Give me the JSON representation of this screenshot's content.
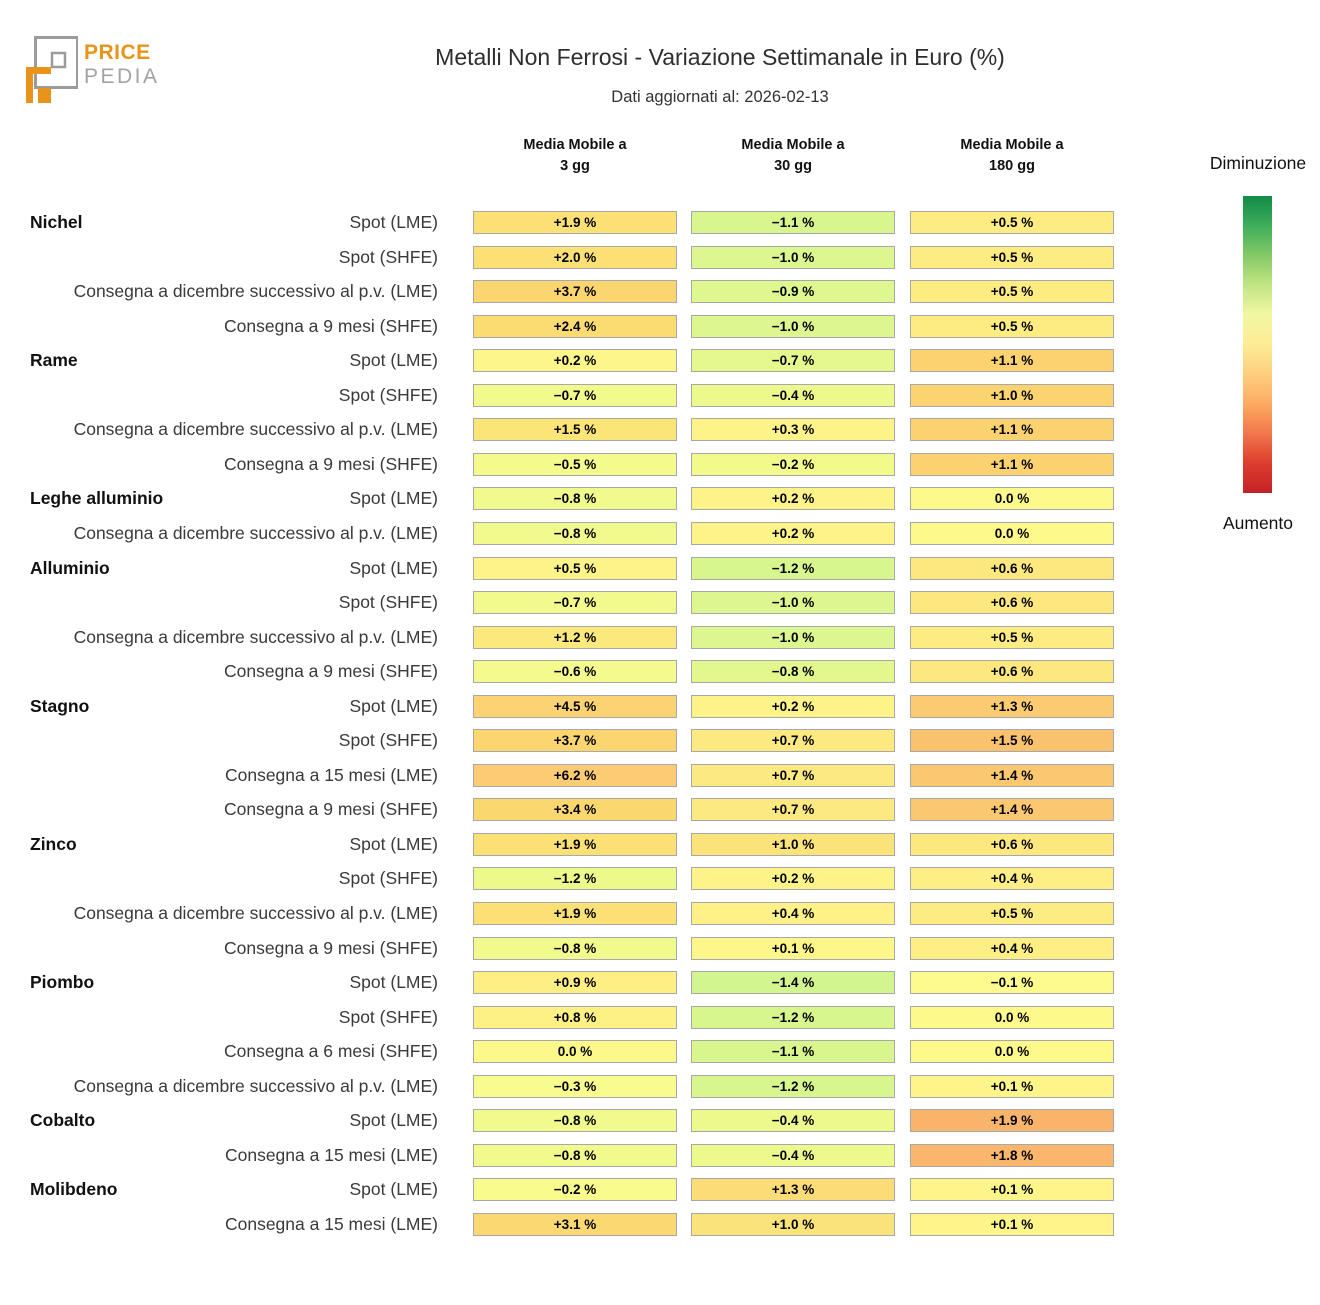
{
  "logo": {
    "brand_top": "PRICE",
    "brand_bottom": "PEDIA",
    "orange": "#e8941a",
    "gray": "#9c9c9c"
  },
  "header": {
    "title": "Metalli Non Ferrosi - Variazione Settimanale in Euro (%)",
    "subtitle": "Dati aggiornati al: 2026-02-13"
  },
  "legend": {
    "top_label": "Diminuzione",
    "bottom_label": "Aumento",
    "gradient": [
      "#128a46",
      "#3fae5c",
      "#84c966",
      "#c2e584",
      "#f2f7a2",
      "#fdec95",
      "#fdcf7d",
      "#fdab62",
      "#f2764c",
      "#dd3d2d",
      "#c32127"
    ]
  },
  "chart_data": {
    "type": "heatmap",
    "title": "Metalli Non Ferrosi - Variazione Settimanale in Euro (%)",
    "subtitle": "Dati aggiornati al: 2026-02-13",
    "updated": "2026-02-13",
    "value_unit": "%",
    "columns": [
      {
        "line1": "Media Mobile a",
        "line2": "3 gg"
      },
      {
        "line1": "Media Mobile a",
        "line2": "30 gg"
      },
      {
        "line1": "Media Mobile a",
        "line2": "180 gg"
      }
    ],
    "colorbar": {
      "top": "Diminuzione",
      "bottom": "Aumento"
    },
    "rows": [
      {
        "group": "Nichel",
        "label": "Spot (LME)",
        "values": [
          1.9,
          -1.1,
          0.5
        ],
        "display": [
          "+1.9 %",
          "−1.1 %",
          "+0.5 %"
        ],
        "colors": [
          "#fbe175",
          "#d9f68e",
          "#fdec82"
        ]
      },
      {
        "group": "",
        "label": "Spot (SHFE)",
        "values": [
          2.0,
          -1.0,
          0.5
        ],
        "display": [
          "+2.0 %",
          "−1.0 %",
          "+0.5 %"
        ],
        "colors": [
          "#fbe074",
          "#dcf78f",
          "#fdec82"
        ]
      },
      {
        "group": "",
        "label": "Consegna a dicembre successivo al p.v. (LME)",
        "values": [
          3.7,
          -0.9,
          0.5
        ],
        "display": [
          "+3.7 %",
          "−0.9 %",
          "+0.5 %"
        ],
        "colors": [
          "#fbd56f",
          "#dff78f",
          "#fdec82"
        ]
      },
      {
        "group": "",
        "label": "Consegna a 9 mesi (SHFE)",
        "values": [
          2.4,
          -1.0,
          0.5
        ],
        "display": [
          "+2.4 %",
          "−1.0 %",
          "+0.5 %"
        ],
        "colors": [
          "#fbdc72",
          "#dcf78f",
          "#fdec82"
        ]
      },
      {
        "group": "Rame",
        "label": "Spot (LME)",
        "values": [
          0.2,
          -0.7,
          1.1
        ],
        "display": [
          "+0.2 %",
          "−0.7 %",
          "+1.1 %"
        ],
        "colors": [
          "#fdf78b",
          "#e5f88e",
          "#fbd26f"
        ]
      },
      {
        "group": "",
        "label": "Spot (SHFE)",
        "values": [
          -0.7,
          -0.4,
          1.0
        ],
        "display": [
          "−0.7 %",
          "−0.4 %",
          "+1.0 %"
        ],
        "colors": [
          "#f3fa8d",
          "#edf98d",
          "#fbd471"
        ]
      },
      {
        "group": "",
        "label": "Consegna a dicembre successivo al p.v. (LME)",
        "values": [
          1.5,
          0.3,
          1.1
        ],
        "display": [
          "+1.5 %",
          "+0.3 %",
          "+1.1 %"
        ],
        "colors": [
          "#fce577",
          "#fdf389",
          "#fbd26f"
        ]
      },
      {
        "group": "",
        "label": "Consegna a 9 mesi (SHFE)",
        "values": [
          -0.5,
          -0.2,
          1.1
        ],
        "display": [
          "−0.5 %",
          "−0.2 %",
          "+1.1 %"
        ],
        "colors": [
          "#f5fa8d",
          "#f2fa8c",
          "#fbd26f"
        ]
      },
      {
        "group": "Leghe alluminio",
        "label": "Spot (LME)",
        "values": [
          -0.8,
          0.2,
          0.0
        ],
        "display": [
          "−0.8 %",
          "+0.2 %",
          "0.0 %"
        ],
        "colors": [
          "#f1fa8c",
          "#fdf489",
          "#fef98b"
        ]
      },
      {
        "group": "",
        "label": "Consegna a dicembre successivo al p.v. (LME)",
        "values": [
          -0.8,
          0.2,
          0.0
        ],
        "display": [
          "−0.8 %",
          "+0.2 %",
          "0.0 %"
        ],
        "colors": [
          "#f1fa8c",
          "#fdf489",
          "#fef98b"
        ]
      },
      {
        "group": "Alluminio",
        "label": "Spot (LME)",
        "values": [
          0.5,
          -1.2,
          0.6
        ],
        "display": [
          "+0.5 %",
          "−1.2 %",
          "+0.6 %"
        ],
        "colors": [
          "#fdf489",
          "#d7f68e",
          "#fce87e"
        ]
      },
      {
        "group": "",
        "label": "Spot (SHFE)",
        "values": [
          -0.7,
          -1.0,
          0.6
        ],
        "display": [
          "−0.7 %",
          "−1.0 %",
          "+0.6 %"
        ],
        "colors": [
          "#f3fa8d",
          "#dcf78f",
          "#fce87e"
        ]
      },
      {
        "group": "",
        "label": "Consegna a dicembre successivo al p.v. (LME)",
        "values": [
          1.2,
          -1.0,
          0.5
        ],
        "display": [
          "+1.2 %",
          "−1.0 %",
          "+0.5 %"
        ],
        "colors": [
          "#fce97e",
          "#dcf78f",
          "#fdec82"
        ]
      },
      {
        "group": "",
        "label": "Consegna a 9 mesi (SHFE)",
        "values": [
          -0.6,
          -0.8,
          0.6
        ],
        "display": [
          "−0.6 %",
          "−0.8 %",
          "+0.6 %"
        ],
        "colors": [
          "#f4fa8d",
          "#e2f88e",
          "#fce87e"
        ]
      },
      {
        "group": "Stagno",
        "label": "Spot (LME)",
        "values": [
          4.5,
          0.2,
          1.3
        ],
        "display": [
          "+4.5 %",
          "+0.2 %",
          "+1.3 %"
        ],
        "colors": [
          "#fcd372",
          "#fdf489",
          "#fbcb72"
        ]
      },
      {
        "group": "",
        "label": "Spot (SHFE)",
        "values": [
          3.7,
          0.7,
          1.5
        ],
        "display": [
          "+3.7 %",
          "+0.7 %",
          "+1.5 %"
        ],
        "colors": [
          "#fbd56f",
          "#fce981",
          "#fac26f"
        ]
      },
      {
        "group": "",
        "label": "Consegna a 15 mesi (LME)",
        "values": [
          6.2,
          0.7,
          1.4
        ],
        "display": [
          "+6.2 %",
          "+0.7 %",
          "+1.4 %"
        ],
        "colors": [
          "#fdcb74",
          "#fce981",
          "#fbc871"
        ]
      },
      {
        "group": "",
        "label": "Consegna a 9 mesi (SHFE)",
        "values": [
          3.4,
          0.7,
          1.4
        ],
        "display": [
          "+3.4 %",
          "+0.7 %",
          "+1.4 %"
        ],
        "colors": [
          "#fbd770",
          "#fce981",
          "#fbc871"
        ]
      },
      {
        "group": "Zinco",
        "label": "Spot (LME)",
        "values": [
          1.9,
          1.0,
          0.6
        ],
        "display": [
          "+1.9 %",
          "+1.0 %",
          "+0.6 %"
        ],
        "colors": [
          "#fbe175",
          "#fbe37b",
          "#fce87e"
        ]
      },
      {
        "group": "",
        "label": "Spot (SHFE)",
        "values": [
          -1.2,
          0.2,
          0.4
        ],
        "display": [
          "−1.2 %",
          "+0.2 %",
          "+0.4 %"
        ],
        "colors": [
          "#edf98b",
          "#fdf489",
          "#fdef85"
        ]
      },
      {
        "group": "",
        "label": "Consegna a dicembre successivo al p.v. (LME)",
        "values": [
          1.9,
          0.4,
          0.5
        ],
        "display": [
          "+1.9 %",
          "+0.4 %",
          "+0.5 %"
        ],
        "colors": [
          "#fbe175",
          "#fdf187",
          "#fdec82"
        ]
      },
      {
        "group": "",
        "label": "Consegna a 9 mesi (SHFE)",
        "values": [
          -0.8,
          0.1,
          0.4
        ],
        "display": [
          "−0.8 %",
          "+0.1 %",
          "+0.4 %"
        ],
        "colors": [
          "#f1fa8c",
          "#fdf68a",
          "#fdef85"
        ]
      },
      {
        "group": "Piombo",
        "label": "Spot (LME)",
        "values": [
          0.9,
          -1.4,
          -0.1
        ],
        "display": [
          "+0.9 %",
          "−1.4 %",
          "−0.1 %"
        ],
        "colors": [
          "#fdef84",
          "#d2f590",
          "#fdfa8e"
        ]
      },
      {
        "group": "",
        "label": "Spot (SHFE)",
        "values": [
          0.8,
          -1.2,
          0.0
        ],
        "display": [
          "+0.8 %",
          "−1.2 %",
          "0.0 %"
        ],
        "colors": [
          "#fdf085",
          "#d7f68e",
          "#fef98b"
        ]
      },
      {
        "group": "",
        "label": "Consegna a 6 mesi (SHFE)",
        "values": [
          0.0,
          -1.1,
          0.0
        ],
        "display": [
          "0.0 %",
          "−1.1 %",
          "0.0 %"
        ],
        "colors": [
          "#fdf88c",
          "#d9f68e",
          "#fef98b"
        ]
      },
      {
        "group": "",
        "label": "Consegna a dicembre successivo al p.v. (LME)",
        "values": [
          -0.3,
          -1.2,
          0.1
        ],
        "display": [
          "−0.3 %",
          "−1.2 %",
          "+0.1 %"
        ],
        "colors": [
          "#f8fb8d",
          "#d7f68e",
          "#fdf58a"
        ]
      },
      {
        "group": "Cobalto",
        "label": "Spot (LME)",
        "values": [
          -0.8,
          -0.4,
          1.9
        ],
        "display": [
          "−0.8 %",
          "−0.4 %",
          "+1.9 %"
        ],
        "colors": [
          "#f1fa8c",
          "#edf98d",
          "#f9b46b"
        ]
      },
      {
        "group": "",
        "label": "Consegna a 15 mesi (LME)",
        "values": [
          -0.8,
          -0.4,
          1.8
        ],
        "display": [
          "−0.8 %",
          "−0.4 %",
          "+1.8 %"
        ],
        "colors": [
          "#f1fa8c",
          "#edf98d",
          "#f9b66c"
        ]
      },
      {
        "group": "Molibdeno",
        "label": "Spot (LME)",
        "values": [
          -0.2,
          1.3,
          0.1
        ],
        "display": [
          "−0.2 %",
          "+1.3 %",
          "+0.1 %"
        ],
        "colors": [
          "#f9fb8d",
          "#fbdc76",
          "#fdf58a"
        ]
      },
      {
        "group": "",
        "label": "Consegna a 15 mesi (LME)",
        "values": [
          3.1,
          1.0,
          0.1
        ],
        "display": [
          "+3.1 %",
          "+1.0 %",
          "+0.1 %"
        ],
        "colors": [
          "#fbd871",
          "#fbe37b",
          "#fdf58a"
        ]
      }
    ]
  }
}
